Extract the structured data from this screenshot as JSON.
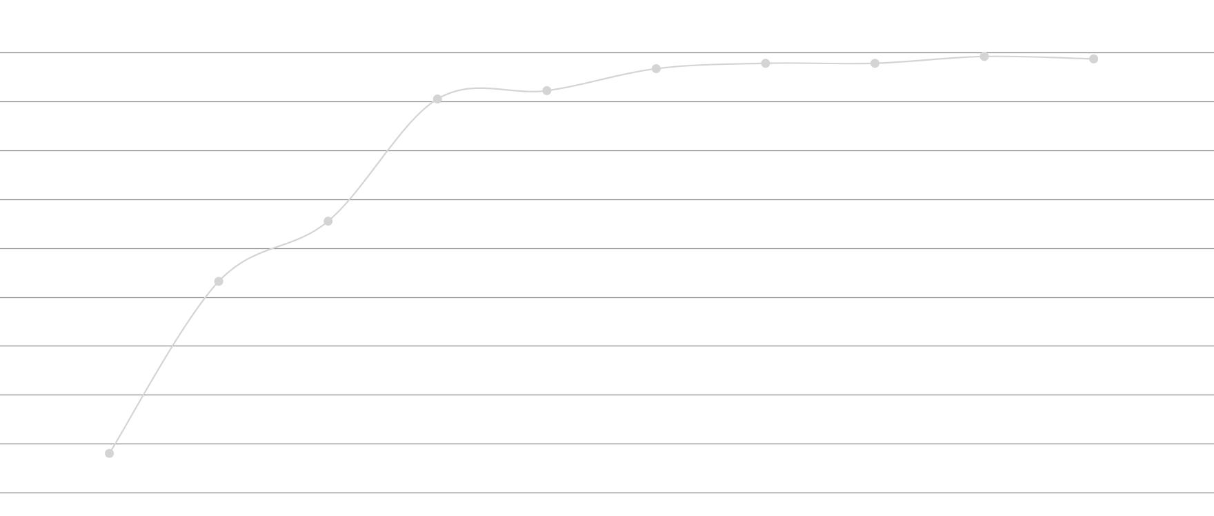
{
  "chart_data": {
    "type": "line",
    "title": "",
    "xlabel": "",
    "ylabel": "",
    "x": [
      1,
      2,
      3,
      4,
      5,
      6,
      7,
      8,
      9,
      10
    ],
    "series": [
      {
        "values": [
          0.0,
          3.52,
          4.75,
          7.25,
          7.42,
          7.87,
          7.98,
          7.98,
          8.12,
          8.07
        ],
        "color": "#d4d4d4"
      }
    ],
    "xlim": [
      0.0,
      11.1
    ],
    "ylim": [
      -0.8,
      8.95
    ],
    "gridlines_y": [
      -0.8,
      0.2,
      1.2,
      2.2,
      3.2,
      4.2,
      5.2,
      6.2,
      7.2,
      8.2
    ],
    "grid": true,
    "grid_color": "#888888",
    "smooth": true,
    "markers": true
  }
}
